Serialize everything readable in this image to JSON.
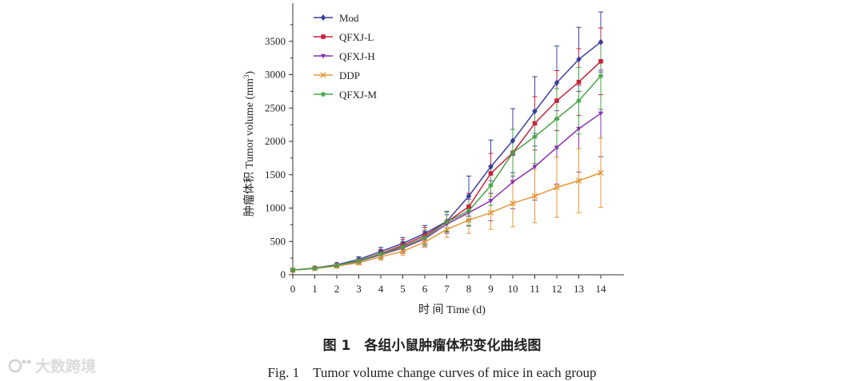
{
  "chart_data": {
    "type": "line",
    "xlabel": "时 间 Time (d)",
    "ylabel": "肿瘤体积 Tumor volume (mm³)",
    "ylabel_cn": "肿瘤体积",
    "ylabel_en": "Tumor volume (mm",
    "ylabel_sup": "3",
    "ylabel_close": ")",
    "xlim": [
      0,
      14
    ],
    "ylim": [
      0,
      4000
    ],
    "x": [
      0,
      1,
      2,
      3,
      4,
      5,
      6,
      7,
      8,
      9,
      10,
      11,
      12,
      13,
      14
    ],
    "xticks": [
      "0",
      "1",
      "2",
      "3",
      "4",
      "5",
      "6",
      "7",
      "8",
      "9",
      "10",
      "11",
      "12",
      "13",
      "14"
    ],
    "yticks": [
      0,
      500,
      1000,
      1500,
      2000,
      2500,
      3000,
      3500
    ],
    "ytick_labels": [
      "0",
      "500",
      "1000",
      "1500",
      "2000",
      "2500",
      "3000",
      "3500"
    ],
    "legend_position": "top-left",
    "series": [
      {
        "name": "Mod",
        "color": "#3a3f9c",
        "marker": "diamond",
        "values": [
          70,
          100,
          150,
          230,
          350,
          470,
          620,
          800,
          1180,
          1620,
          2010,
          2450,
          2880,
          3230,
          3490
        ],
        "errors": [
          10,
          20,
          30,
          40,
          60,
          90,
          120,
          150,
          300,
          400,
          480,
          520,
          550,
          480,
          450
        ]
      },
      {
        "name": "QFXJ-L",
        "color": "#c8233c",
        "marker": "square",
        "values": [
          70,
          100,
          140,
          210,
          320,
          440,
          590,
          790,
          1020,
          1520,
          1830,
          2270,
          2610,
          2890,
          3200
        ],
        "errors": [
          10,
          20,
          30,
          40,
          60,
          90,
          120,
          150,
          200,
          300,
          350,
          400,
          450,
          500,
          500
        ]
      },
      {
        "name": "QFXJ-H",
        "color": "#8a2fae",
        "marker": "triangle",
        "values": [
          70,
          95,
          140,
          200,
          300,
          400,
          540,
          760,
          930,
          1110,
          1390,
          1620,
          1910,
          2190,
          2420
        ],
        "errors": [
          10,
          20,
          30,
          40,
          60,
          80,
          110,
          140,
          200,
          300,
          400,
          500,
          550,
          650,
          650
        ]
      },
      {
        "name": "DDP",
        "color": "#e39a3a",
        "marker": "x",
        "values": [
          70,
          95,
          130,
          180,
          270,
          350,
          490,
          680,
          820,
          930,
          1070,
          1180,
          1310,
          1410,
          1530
        ],
        "errors": [
          10,
          20,
          30,
          30,
          50,
          60,
          80,
          120,
          200,
          250,
          350,
          400,
          450,
          480,
          520
        ]
      },
      {
        "name": "QFXJ-M",
        "color": "#47a447",
        "marker": "star",
        "values": [
          70,
          98,
          140,
          210,
          310,
          420,
          560,
          790,
          960,
          1340,
          1830,
          2070,
          2340,
          2610,
          2980
        ],
        "errors": [
          10,
          20,
          30,
          40,
          60,
          80,
          110,
          150,
          220,
          300,
          350,
          400,
          450,
          500,
          500
        ]
      }
    ]
  },
  "caption_cn": "图 1　各组小鼠肿瘤体积变化曲线图",
  "caption_en": "Fig. 1　Tumor volume change curves of mice in each group",
  "watermark": "大数跨境"
}
